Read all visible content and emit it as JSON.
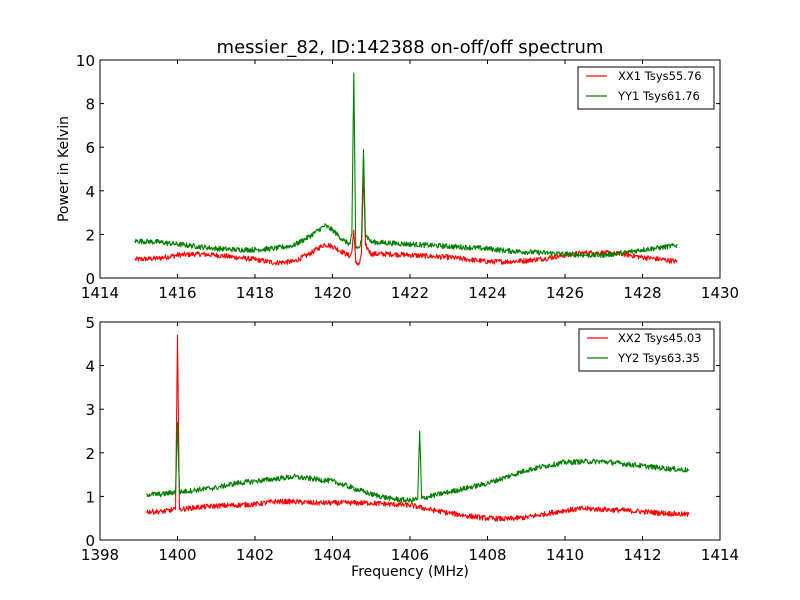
{
  "chart_data": [
    {
      "type": "line",
      "title": "messier_82, ID:142388 on-off/off spectrum",
      "xlabel": "",
      "ylabel": "Power in Kelvin",
      "xlim": [
        1414,
        1430
      ],
      "ylim": [
        0,
        10
      ],
      "xticks": [
        "1414",
        "1416",
        "1418",
        "1420",
        "1422",
        "1424",
        "1426",
        "1428",
        "1430"
      ],
      "yticks": [
        "0",
        "2",
        "4",
        "6",
        "8",
        "10"
      ],
      "legend_position": "top-right",
      "series": [
        {
          "name": "XX1 Tsys55.76",
          "color": "#ff0000",
          "points": [
            [
              1414.9,
              0.85
            ],
            [
              1415.5,
              0.9
            ],
            [
              1416.0,
              1.05
            ],
            [
              1416.5,
              1.1
            ],
            [
              1417.0,
              1.05
            ],
            [
              1417.5,
              0.95
            ],
            [
              1418.0,
              0.85
            ],
            [
              1418.5,
              0.7
            ],
            [
              1419.0,
              0.75
            ],
            [
              1419.4,
              1.1
            ],
            [
              1419.8,
              1.55
            ],
            [
              1420.0,
              1.45
            ],
            [
              1420.3,
              1.15
            ],
            [
              1420.45,
              1.0
            ],
            [
              1420.5,
              1.2
            ],
            [
              1420.55,
              2.2
            ],
            [
              1420.6,
              0.7
            ],
            [
              1420.7,
              0.65
            ],
            [
              1420.75,
              1.2
            ],
            [
              1420.8,
              5.0
            ],
            [
              1420.85,
              1.5
            ],
            [
              1421.0,
              1.1
            ],
            [
              1421.5,
              1.1
            ],
            [
              1422.0,
              1.05
            ],
            [
              1422.5,
              1.0
            ],
            [
              1423.0,
              0.95
            ],
            [
              1423.5,
              0.85
            ],
            [
              1424.0,
              0.75
            ],
            [
              1424.5,
              0.75
            ],
            [
              1425.0,
              0.8
            ],
            [
              1425.5,
              0.9
            ],
            [
              1426.0,
              1.05
            ],
            [
              1426.5,
              1.15
            ],
            [
              1427.0,
              1.15
            ],
            [
              1427.5,
              1.1
            ],
            [
              1428.0,
              0.95
            ],
            [
              1428.5,
              0.85
            ],
            [
              1428.9,
              0.75
            ]
          ]
        },
        {
          "name": "YY1 Tsys61.76",
          "color": "#008000",
          "points": [
            [
              1414.9,
              1.7
            ],
            [
              1415.5,
              1.65
            ],
            [
              1416.0,
              1.55
            ],
            [
              1416.5,
              1.45
            ],
            [
              1417.0,
              1.35
            ],
            [
              1417.5,
              1.3
            ],
            [
              1418.0,
              1.3
            ],
            [
              1418.5,
              1.35
            ],
            [
              1419.0,
              1.5
            ],
            [
              1419.4,
              1.9
            ],
            [
              1419.8,
              2.4
            ],
            [
              1420.0,
              2.2
            ],
            [
              1420.3,
              1.7
            ],
            [
              1420.45,
              1.55
            ],
            [
              1420.5,
              2.0
            ],
            [
              1420.55,
              9.4
            ],
            [
              1420.6,
              1.4
            ],
            [
              1420.7,
              1.4
            ],
            [
              1420.75,
              1.8
            ],
            [
              1420.8,
              5.9
            ],
            [
              1420.85,
              2.0
            ],
            [
              1421.0,
              1.65
            ],
            [
              1421.5,
              1.6
            ],
            [
              1422.0,
              1.55
            ],
            [
              1422.5,
              1.5
            ],
            [
              1423.0,
              1.45
            ],
            [
              1423.5,
              1.4
            ],
            [
              1424.0,
              1.35
            ],
            [
              1424.5,
              1.25
            ],
            [
              1425.0,
              1.2
            ],
            [
              1425.5,
              1.15
            ],
            [
              1426.0,
              1.1
            ],
            [
              1426.5,
              1.05
            ],
            [
              1427.0,
              1.05
            ],
            [
              1427.5,
              1.15
            ],
            [
              1428.0,
              1.3
            ],
            [
              1428.5,
              1.4
            ],
            [
              1428.9,
              1.5
            ]
          ]
        }
      ]
    },
    {
      "type": "line",
      "title": "",
      "xlabel": "Frequency (MHz)",
      "ylabel": "",
      "xlim": [
        1398,
        1414
      ],
      "ylim": [
        0,
        5
      ],
      "xticks": [
        "1398",
        "1400",
        "1402",
        "1404",
        "1406",
        "1408",
        "1410",
        "1412",
        "1414"
      ],
      "yticks": [
        "0",
        "1",
        "2",
        "3",
        "4",
        "5"
      ],
      "legend_position": "top-right",
      "series": [
        {
          "name": "XX2 Tsys45.03",
          "color": "#ff0000",
          "points": [
            [
              1399.2,
              0.65
            ],
            [
              1399.6,
              0.65
            ],
            [
              1399.95,
              0.7
            ],
            [
              1400.0,
              4.7
            ],
            [
              1400.05,
              0.7
            ],
            [
              1400.5,
              0.75
            ],
            [
              1401.0,
              0.78
            ],
            [
              1401.5,
              0.8
            ],
            [
              1402.0,
              0.82
            ],
            [
              1402.5,
              0.88
            ],
            [
              1403.0,
              0.88
            ],
            [
              1403.5,
              0.85
            ],
            [
              1404.0,
              0.85
            ],
            [
              1404.5,
              0.85
            ],
            [
              1405.0,
              0.85
            ],
            [
              1405.5,
              0.82
            ],
            [
              1406.0,
              0.8
            ],
            [
              1406.5,
              0.7
            ],
            [
              1407.0,
              0.62
            ],
            [
              1407.5,
              0.55
            ],
            [
              1408.0,
              0.5
            ],
            [
              1408.5,
              0.48
            ],
            [
              1409.0,
              0.52
            ],
            [
              1409.5,
              0.6
            ],
            [
              1410.0,
              0.68
            ],
            [
              1410.5,
              0.72
            ],
            [
              1411.0,
              0.7
            ],
            [
              1411.5,
              0.68
            ],
            [
              1412.0,
              0.65
            ],
            [
              1412.5,
              0.62
            ],
            [
              1413.2,
              0.58
            ]
          ]
        },
        {
          "name": "YY2 Tsys63.35",
          "color": "#008000",
          "points": [
            [
              1399.2,
              1.05
            ],
            [
              1399.6,
              1.05
            ],
            [
              1399.95,
              1.1
            ],
            [
              1400.0,
              2.7
            ],
            [
              1400.05,
              1.1
            ],
            [
              1400.5,
              1.15
            ],
            [
              1401.0,
              1.2
            ],
            [
              1401.5,
              1.3
            ],
            [
              1402.0,
              1.35
            ],
            [
              1402.5,
              1.4
            ],
            [
              1403.0,
              1.45
            ],
            [
              1403.5,
              1.4
            ],
            [
              1404.0,
              1.35
            ],
            [
              1404.5,
              1.2
            ],
            [
              1405.0,
              1.05
            ],
            [
              1405.5,
              0.95
            ],
            [
              1406.0,
              0.9
            ],
            [
              1406.2,
              0.95
            ],
            [
              1406.25,
              2.5
            ],
            [
              1406.3,
              0.95
            ],
            [
              1406.5,
              1.0
            ],
            [
              1407.0,
              1.1
            ],
            [
              1407.5,
              1.2
            ],
            [
              1408.0,
              1.3
            ],
            [
              1408.5,
              1.45
            ],
            [
              1409.0,
              1.6
            ],
            [
              1409.5,
              1.7
            ],
            [
              1410.0,
              1.78
            ],
            [
              1410.5,
              1.8
            ],
            [
              1411.0,
              1.8
            ],
            [
              1411.5,
              1.75
            ],
            [
              1412.0,
              1.7
            ],
            [
              1412.5,
              1.65
            ],
            [
              1413.2,
              1.6
            ]
          ]
        }
      ]
    }
  ]
}
